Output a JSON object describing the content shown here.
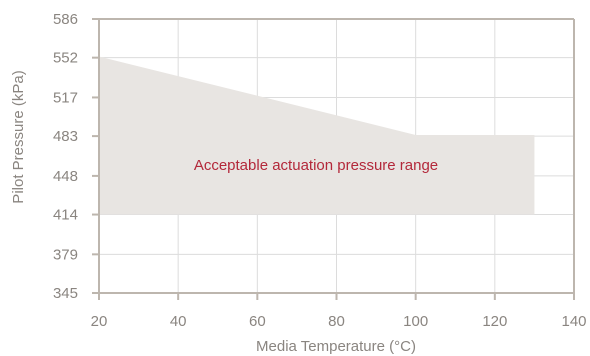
{
  "chart_data": {
    "type": "area",
    "xlabel": "Media Temperature (°C)",
    "ylabel": "Pilot Pressure (kPa)",
    "xlim": [
      20,
      140
    ],
    "ylim": [
      345,
      586
    ],
    "x_ticks": [
      20,
      40,
      60,
      80,
      100,
      120,
      140
    ],
    "y_ticks": [
      345,
      379,
      414,
      448,
      483,
      517,
      552,
      586
    ],
    "grid": true,
    "band": {
      "upper": [
        {
          "x": 20,
          "y": 553
        },
        {
          "x": 100,
          "y": 484
        },
        {
          "x": 130,
          "y": 484
        }
      ],
      "lower": [
        {
          "x": 20,
          "y": 414
        },
        {
          "x": 130,
          "y": 414
        }
      ]
    },
    "annotation": "Acceptable actuation pressure range",
    "colors": {
      "band": "#e8e5e2",
      "grid": "#dcdcdc",
      "axis": "#bdb6ae",
      "tick_text": "#8a8580",
      "annotation": "#b3283a"
    }
  }
}
